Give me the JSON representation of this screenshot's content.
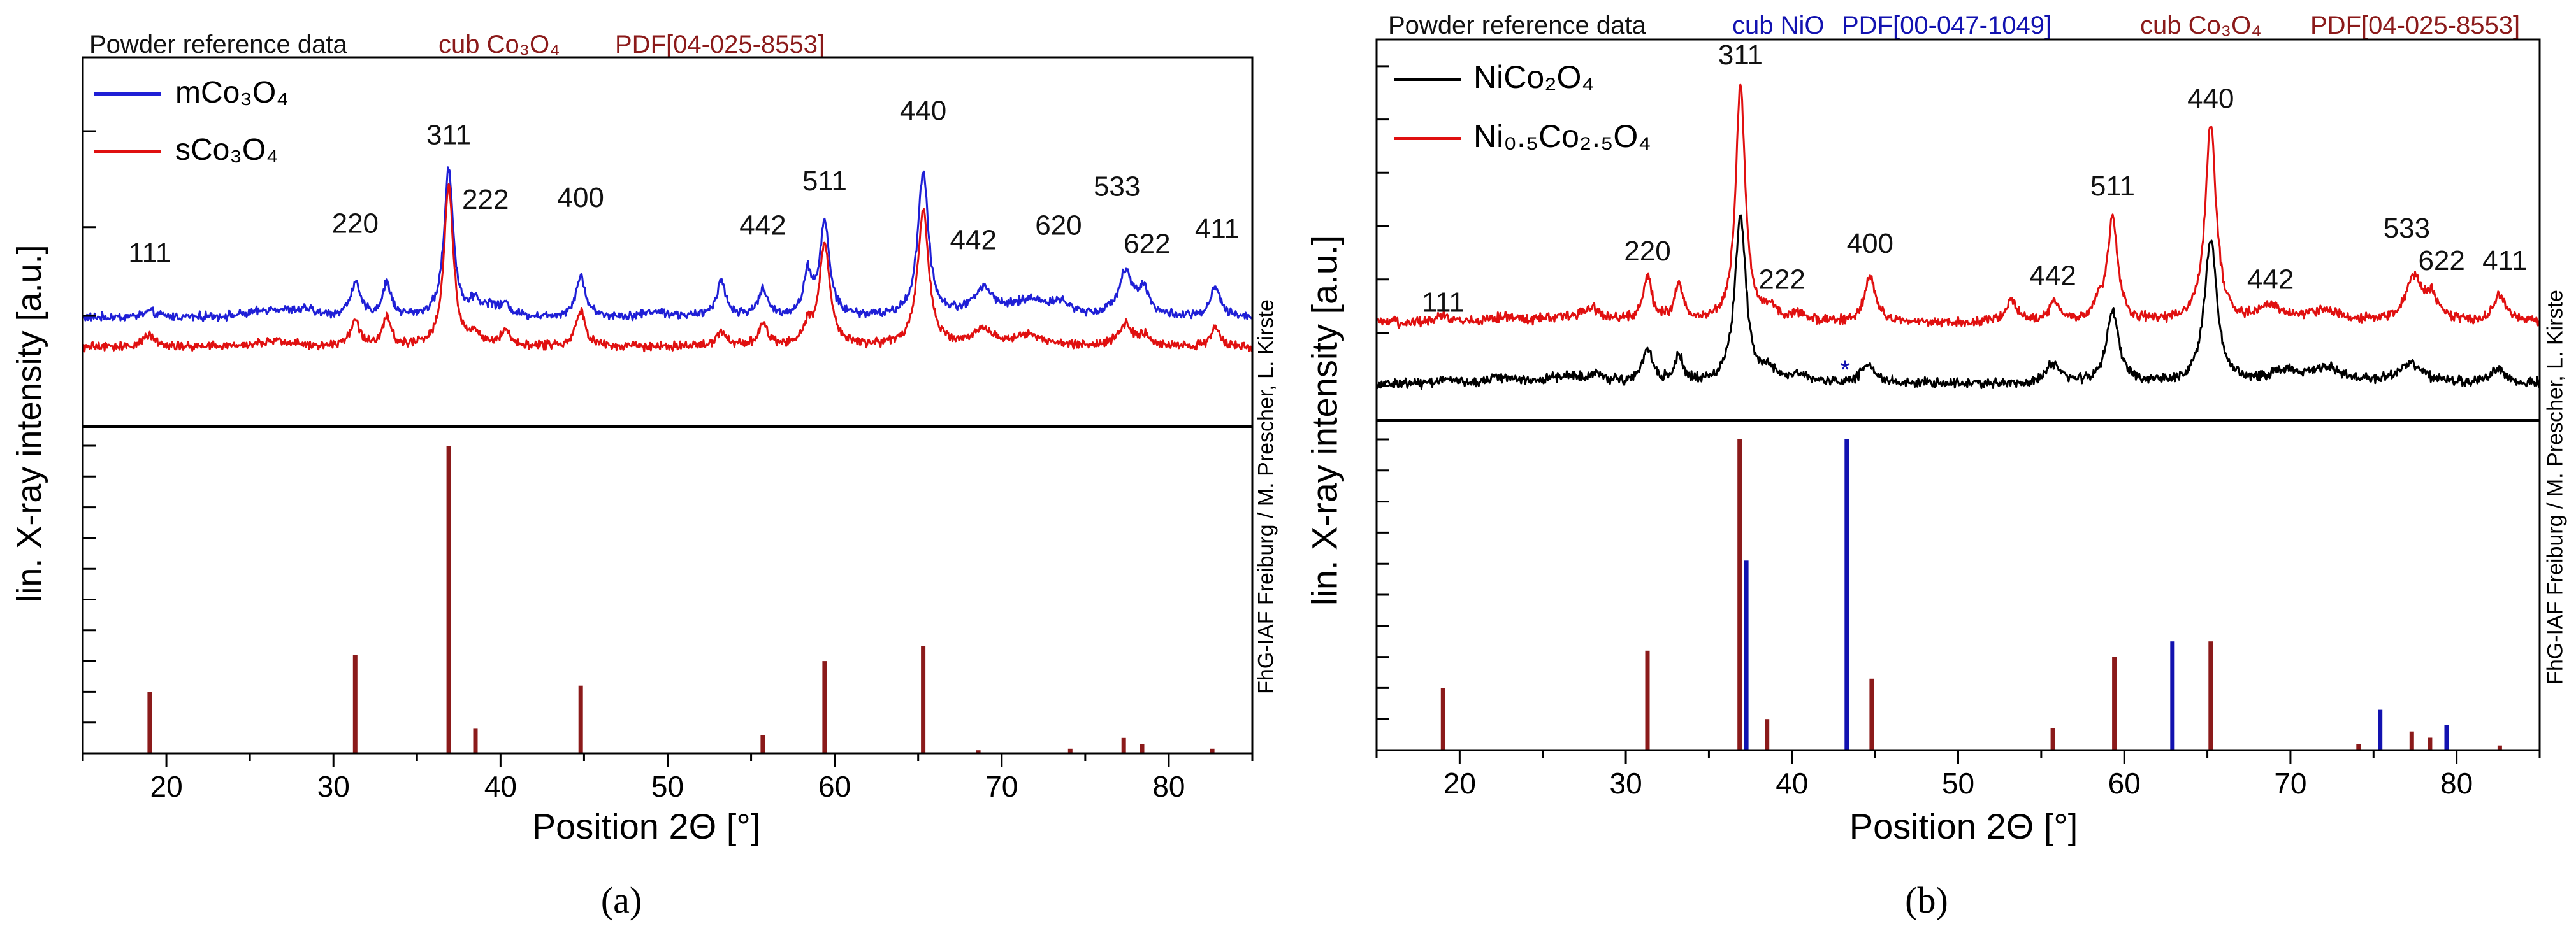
{
  "panels": [
    {
      "caption": "(a)",
      "header": {
        "left": "Powder reference data",
        "refs": [
          {
            "label": "cub Co₃O₄",
            "pdf": "PDF[04-025-8553]",
            "color": "#8b1a1a"
          }
        ]
      },
      "ylabel": "lin. X-ray intensity [a.u.]",
      "xlabel": "Position 2Θ [°]",
      "credit": "FhG-IAF Freiburg / M. Prescher, L. Kirste",
      "xlim": [
        15,
        85
      ],
      "xticks": [
        20,
        30,
        40,
        50,
        60,
        70,
        80
      ],
      "upper": {
        "type": "line",
        "ylim": [
          0,
          100
        ],
        "yticks": [
          30,
          54,
          80
        ],
        "legend": [
          {
            "name": "mCo₃O₄",
            "color": "#1f1fd6"
          },
          {
            "name": "sCo₃O₄",
            "color": "#e01010"
          }
        ],
        "series": [
          {
            "name": "mCo₃O₄",
            "color": "#1f1fd6",
            "base": 29.5,
            "noise": 0.9,
            "peaks": [
              [
                19.0,
                1.5,
                0.5
              ],
              [
                26.5,
                2.2,
                1.5
              ],
              [
                28.4,
                1.5,
                0.5
              ],
              [
                31.3,
                9,
                0.35
              ],
              [
                33.2,
                9,
                0.3
              ],
              [
                36.9,
                40,
                0.33
              ],
              [
                38.5,
                4,
                0.35
              ],
              [
                39.4,
                2.5,
                0.4
              ],
              [
                40.3,
                3,
                0.4
              ],
              [
                44.8,
                11,
                0.35
              ],
              [
                49.3,
                1.5,
                0.8
              ],
              [
                53.2,
                9.5,
                0.35
              ],
              [
                55.7,
                7,
                0.35
              ],
              [
                58.4,
                11,
                0.3
              ],
              [
                59.4,
                25,
                0.35
              ],
              [
                65.3,
                39,
                0.38
              ],
              [
                68.9,
                7,
                0.8
              ],
              [
                71.7,
                4,
                1.2
              ],
              [
                73.5,
                3,
                0.8
              ],
              [
                77.4,
                12,
                0.5
              ],
              [
                78.5,
                7,
                0.4
              ],
              [
                82.8,
                8,
                0.35
              ]
            ]
          },
          {
            "name": "sCo₃O₄",
            "color": "#e01010",
            "base": 21.5,
            "noise": 0.9,
            "peaks": [
              [
                19.0,
                3,
                0.5
              ],
              [
                26.5,
                1.5,
                1.5
              ],
              [
                31.3,
                7,
                0.35
              ],
              [
                33.2,
                8,
                0.3
              ],
              [
                36.9,
                44,
                0.33
              ],
              [
                38.5,
                3,
                0.35
              ],
              [
                40.3,
                4,
                0.4
              ],
              [
                44.8,
                10,
                0.35
              ],
              [
                53.2,
                4,
                0.35
              ],
              [
                55.7,
                6,
                0.35
              ],
              [
                58.4,
                5,
                0.3
              ],
              [
                59.4,
                28,
                0.38
              ],
              [
                65.3,
                37,
                0.4
              ],
              [
                68.9,
                4,
                0.8
              ],
              [
                71.7,
                3,
                1.2
              ],
              [
                77.4,
                6,
                0.5
              ],
              [
                78.5,
                3,
                0.4
              ],
              [
                82.8,
                5,
                0.35
              ]
            ]
          }
        ],
        "annotations": [
          {
            "text": "111",
            "x": 19.0,
            "y": 44.5
          },
          {
            "text": "220",
            "x": 31.3,
            "y": 52.5
          },
          {
            "text": "311",
            "x": 36.9,
            "y": 76.5
          },
          {
            "text": "222",
            "x": 39.1,
            "y": 59
          },
          {
            "text": "400",
            "x": 44.8,
            "y": 59.5
          },
          {
            "text": "442",
            "x": 55.7,
            "y": 52
          },
          {
            "text": "511",
            "x": 59.4,
            "y": 64
          },
          {
            "text": "440",
            "x": 65.3,
            "y": 83
          },
          {
            "text": "442",
            "x": 68.3,
            "y": 48
          },
          {
            "text": "620",
            "x": 73.4,
            "y": 52
          },
          {
            "text": "533",
            "x": 76.9,
            "y": 62.5
          },
          {
            "text": "622",
            "x": 78.7,
            "y": 47
          },
          {
            "text": "411",
            "x": 82.9,
            "y": 51
          }
        ]
      },
      "lower": {
        "type": "bar",
        "ylim": [
          0,
          100
        ],
        "yticks": [
          10,
          20,
          30,
          40,
          50,
          60,
          70,
          80,
          90,
          100
        ],
        "series": [
          {
            "name": "cub Co₃O₄",
            "color": "#8b1a1a",
            "x": [
              19.0,
              31.3,
              36.9,
              38.5,
              44.8,
              55.7,
              59.4,
              65.3,
              68.6,
              74.1,
              77.3,
              78.4,
              82.6
            ],
            "values": [
              20,
              32,
              100,
              8,
              22,
              6,
              30,
              35,
              1,
              1.5,
              5,
              3,
              1.5
            ]
          }
        ]
      }
    },
    {
      "caption": "(b)",
      "header": {
        "left": "Powder reference data",
        "refs": [
          {
            "label": "cub NiO",
            "pdf": "PDF[00-047-1049]",
            "color": "#1212b0"
          },
          {
            "label": "cub Co₃O₄",
            "pdf": "PDF[04-025-8553]",
            "color": "#8b1a1a"
          }
        ]
      },
      "ylabel": "lin. X-ray intensity [a.u.]",
      "xlabel": "Position 2Θ [°]",
      "credit": "FhG-IAF Freiburg / M. Prescher, L. Kirste",
      "xlim": [
        15,
        85
      ],
      "xticks": [
        20,
        30,
        40,
        50,
        60,
        70,
        80
      ],
      "upper": {
        "type": "line",
        "ylim": [
          0,
          100
        ],
        "yticks": [
          9,
          23,
          37,
          51,
          65,
          79,
          93
        ],
        "legend": [
          {
            "name": "NiCo₂O₄",
            "color": "#000000"
          },
          {
            "name": "Ni₀.₅Co₂.₅O₄",
            "color": "#e01010"
          }
        ],
        "series": [
          {
            "name": "NiCo₂O₄",
            "color": "#000000",
            "base": 9.5,
            "noise": 1.0,
            "peaks": [
              [
                19.0,
                1,
                0.5
              ],
              [
                22.5,
                1.5,
                1.2
              ],
              [
                26.5,
                1.8,
                1.5
              ],
              [
                28.3,
                1.8,
                0.6
              ],
              [
                31.3,
                9,
                0.35
              ],
              [
                33.2,
                7,
                0.3
              ],
              [
                36.9,
                44,
                0.4
              ],
              [
                38.7,
                3,
                0.5
              ],
              [
                40.5,
                2.5,
                0.5
              ],
              [
                44.6,
                5,
                0.5
              ],
              [
                55.7,
                5,
                0.5
              ],
              [
                59.3,
                19,
                0.45
              ],
              [
                65.2,
                38,
                0.45
              ],
              [
                69.6,
                3,
                0.9
              ],
              [
                72.2,
                4,
                1.2
              ],
              [
                77.2,
                5,
                0.9
              ],
              [
                82.5,
                4,
                0.5
              ]
            ]
          },
          {
            "name": "Ni₀.₅Co₂.₅O₄",
            "color": "#e01010",
            "base": 25.5,
            "noise": 1.0,
            "peaks": [
              [
                19.0,
                2,
                0.5
              ],
              [
                22.5,
                1.2,
                1.2
              ],
              [
                26.5,
                1.5,
                1.5
              ],
              [
                28.0,
                3,
                0.6
              ],
              [
                31.3,
                11,
                0.35
              ],
              [
                33.2,
                10,
                0.3
              ],
              [
                36.9,
                62,
                0.35
              ],
              [
                38.7,
                3,
                0.5
              ],
              [
                40.5,
                2,
                0.5
              ],
              [
                44.7,
                12,
                0.4
              ],
              [
                53.2,
                6,
                0.4
              ],
              [
                55.8,
                5,
                0.4
              ],
              [
                58.4,
                4,
                0.3
              ],
              [
                59.3,
                27,
                0.38
              ],
              [
                65.2,
                52,
                0.4
              ],
              [
                68.8,
                4,
                0.8
              ],
              [
                72.0,
                3,
                1.2
              ],
              [
                77.4,
                11,
                0.6
              ],
              [
                78.5,
                6,
                0.5
              ],
              [
                82.6,
                7,
                0.5
              ]
            ]
          }
        ],
        "annotations": [
          {
            "text": "311",
            "x": 36.9,
            "y": 93.5
          },
          {
            "text": "440",
            "x": 65.2,
            "y": 82
          },
          {
            "text": "511",
            "x": 59.3,
            "y": 59
          },
          {
            "text": "220",
            "x": 31.3,
            "y": 42
          },
          {
            "text": "400",
            "x": 44.7,
            "y": 44
          },
          {
            "text": "442",
            "x": 55.7,
            "y": 35.5
          },
          {
            "text": "111",
            "x": 19.0,
            "y": 28.5
          },
          {
            "text": "222",
            "x": 39.4,
            "y": 34.5
          },
          {
            "text": "442",
            "x": 68.8,
            "y": 34.5
          },
          {
            "text": "533",
            "x": 77.0,
            "y": 48
          },
          {
            "text": "622",
            "x": 79.1,
            "y": 39.5
          },
          {
            "text": "411",
            "x": 82.9,
            "y": 39.5
          },
          {
            "text": "*",
            "x": 43.2,
            "y": 11
          }
        ]
      },
      "lower": {
        "type": "bar",
        "ylim": [
          0,
          100
        ],
        "yticks": [
          10,
          20,
          30,
          40,
          50,
          60,
          70,
          80,
          90,
          100
        ],
        "series": [
          {
            "name": "cub Co₃O₄",
            "color": "#8b1a1a",
            "x": [
              19.0,
              31.3,
              36.85,
              38.5,
              44.8,
              55.7,
              59.4,
              65.2,
              74.1,
              77.3,
              78.4,
              82.6
            ],
            "values": [
              20,
              32,
              100,
              10,
              23,
              7,
              30,
              35,
              2,
              6,
              4,
              1.5
            ]
          },
          {
            "name": "cub NiO",
            "color": "#1212b0",
            "x": [
              37.25,
              43.3,
              62.9,
              75.4,
              79.4
            ],
            "values": [
              61,
              100,
              35,
              13,
              8
            ]
          }
        ]
      }
    }
  ]
}
